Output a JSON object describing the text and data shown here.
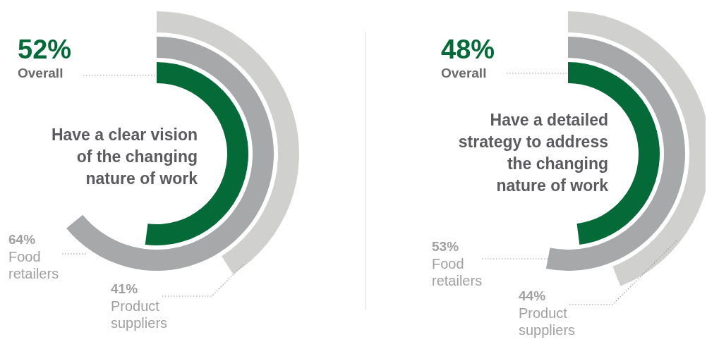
{
  "chart_data": [
    {
      "type": "other",
      "title": "Have a clear vision of the changing nature of work",
      "categories": [
        "Overall",
        "Food retailers",
        "Product suppliers"
      ],
      "values": [
        52,
        64,
        41
      ],
      "value_labels": [
        "52%",
        "64%",
        "41%"
      ],
      "colors": [
        "#046a38",
        "#a7a8aa",
        "#d0d0ce"
      ]
    },
    {
      "type": "other",
      "title": "Have a detailed strategy to address the changing nature of work",
      "categories": [
        "Overall",
        "Food retailers",
        "Product suppliers"
      ],
      "values": [
        48,
        53,
        44
      ],
      "value_labels": [
        "48%",
        "53%",
        "44%"
      ],
      "colors": [
        "#046a38",
        "#a7a8aa",
        "#d0d0ce"
      ]
    }
  ]
}
